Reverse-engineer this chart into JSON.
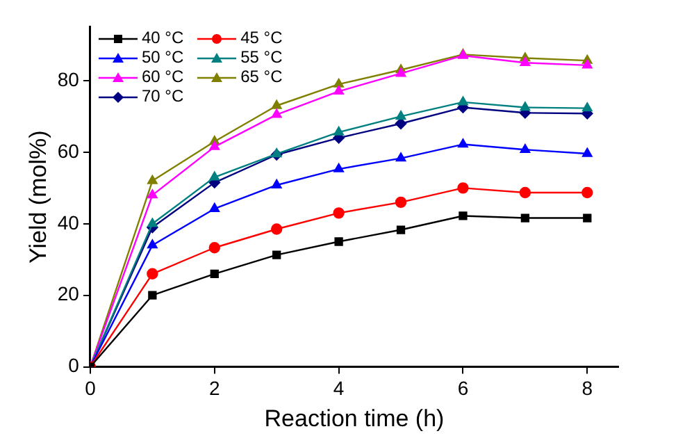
{
  "chart_data": {
    "type": "line",
    "xlabel": "Reaction time (h)",
    "ylabel": "Yield (mol%)",
    "x": [
      0,
      1,
      2,
      3,
      4,
      5,
      6,
      7,
      8
    ],
    "xlim": [
      0,
      8.5
    ],
    "xticks": [
      0,
      2,
      4,
      6,
      8
    ],
    "ylim": [
      0,
      95
    ],
    "yticks": [
      0,
      20,
      40,
      60,
      80
    ],
    "grid": false,
    "legend": "top left",
    "series": [
      {
        "name": "40 °C",
        "color": "#000000",
        "marker": "square",
        "values": [
          0,
          20,
          26,
          31.3,
          35,
          38.3,
          42.2,
          41.6,
          41.6
        ]
      },
      {
        "name": "45 °C",
        "color": "#ff0000",
        "marker": "circle",
        "values": [
          0,
          26,
          33.3,
          38.5,
          43,
          46,
          50,
          48.7,
          48.7
        ]
      },
      {
        "name": "50 °C",
        "color": "#0000ff",
        "marker": "triangle",
        "values": [
          0,
          34,
          44.2,
          50.8,
          55.3,
          58.3,
          62.2,
          60.7,
          59.6
        ]
      },
      {
        "name": "55 °C",
        "color": "#008080",
        "marker": "triangle",
        "values": [
          0,
          40,
          53,
          59.5,
          65.6,
          70,
          74,
          72.5,
          72.3
        ]
      },
      {
        "name": "60 °C",
        "color": "#ff00ff",
        "marker": "triangle",
        "values": [
          0,
          48,
          61.5,
          70.5,
          77,
          82,
          87,
          85,
          84.3
        ]
      },
      {
        "name": "65 °C",
        "color": "#808000",
        "marker": "triangle",
        "values": [
          0,
          52,
          63,
          73,
          79,
          83,
          87.3,
          86.3,
          85.6
        ]
      },
      {
        "name": "70 °C",
        "color": "#000080",
        "marker": "diamond",
        "values": [
          0,
          39,
          51.5,
          59.3,
          64,
          68,
          72.5,
          71,
          70.8
        ]
      }
    ]
  }
}
